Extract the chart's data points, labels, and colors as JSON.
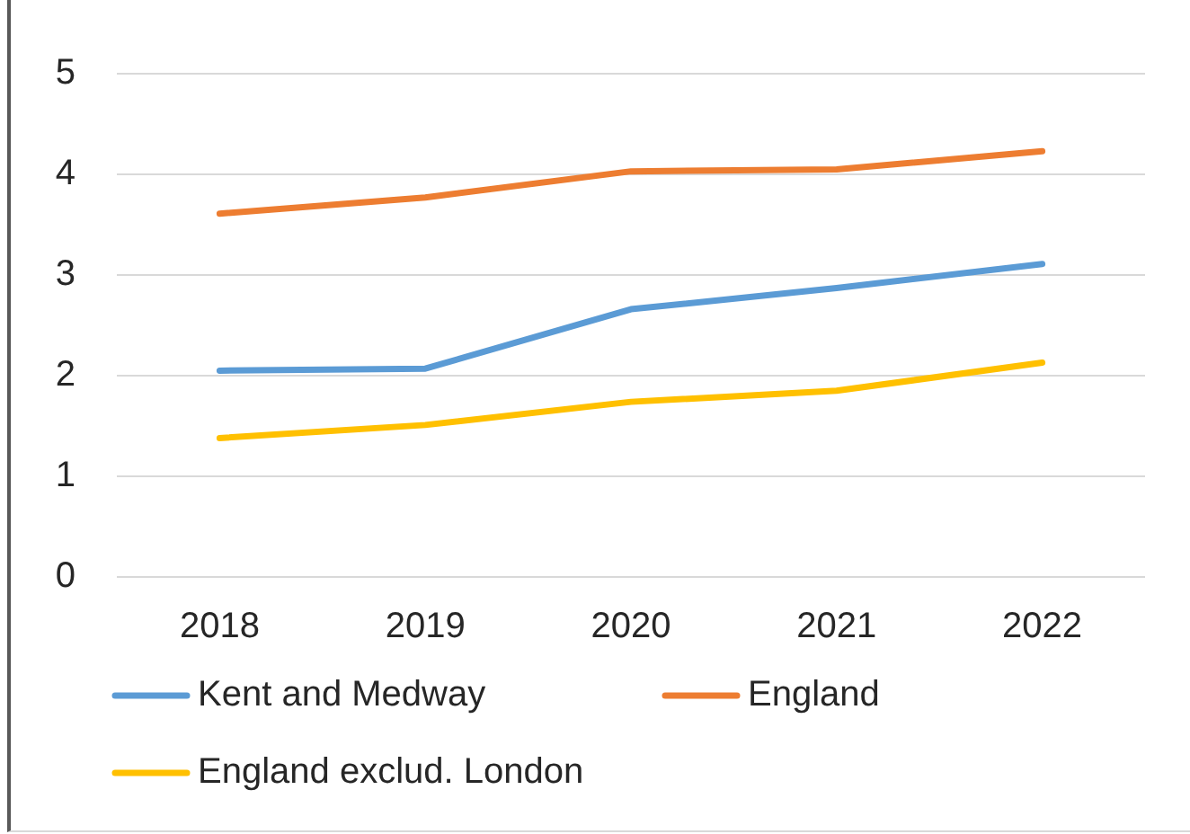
{
  "chart_data": {
    "type": "line",
    "categories": [
      "2018",
      "2019",
      "2020",
      "2021",
      "2022"
    ],
    "series": [
      {
        "name": "Kent and Medway",
        "color": "#5b9bd5",
        "values": [
          2.05,
          2.07,
          2.66,
          2.87,
          3.11
        ]
      },
      {
        "name": "England",
        "color": "#ed7d31",
        "values": [
          3.61,
          3.77,
          4.03,
          4.05,
          4.23
        ]
      },
      {
        "name": "England exclud. London",
        "color": "#ffc000",
        "values": [
          1.38,
          1.51,
          1.74,
          1.85,
          2.13
        ]
      }
    ],
    "ylim": [
      0,
      5
    ],
    "yticks": [
      0,
      1,
      2,
      3,
      4,
      5
    ],
    "grid": "y",
    "legend": "bottom",
    "marker": "none",
    "line_style": "solid"
  }
}
